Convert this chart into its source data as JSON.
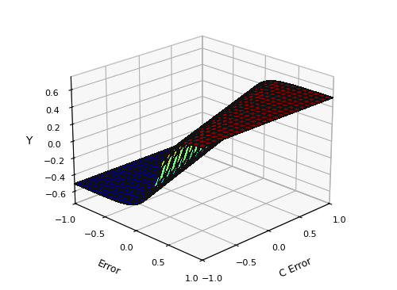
{
  "xlabel": "Error",
  "ylabel": "C Error",
  "zlabel": "Y",
  "xlim": [
    -1,
    1
  ],
  "ylim": [
    -1,
    1
  ],
  "zlim": [
    -0.75,
    0.75
  ],
  "zticks": [
    -0.6,
    -0.4,
    -0.2,
    0,
    0.2,
    0.4,
    0.6
  ],
  "xticks": [
    -1,
    -0.5,
    0,
    0.5,
    1
  ],
  "yticks": [
    1,
    0.5,
    0,
    -0.5,
    -1
  ],
  "n_points": 25,
  "elev": 22,
  "azim": 45,
  "cmap": "jet",
  "alpha": 1.0,
  "linewidth": 0.5,
  "edgecolor": "#111111",
  "background_color": "#ffffff"
}
